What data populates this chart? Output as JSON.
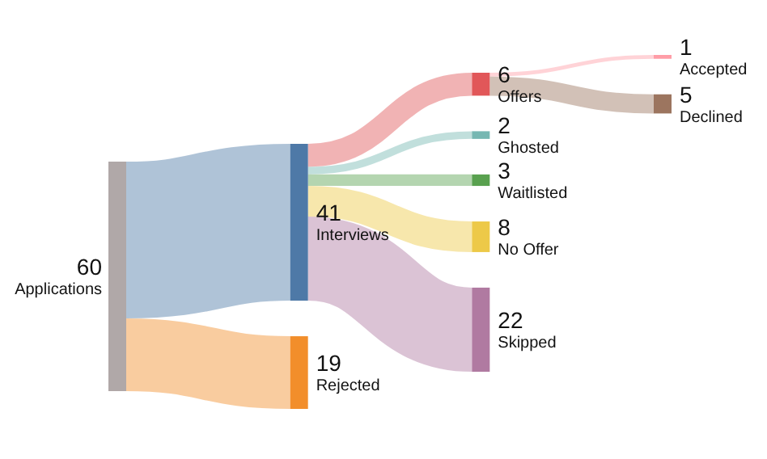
{
  "chart_data": {
    "type": "other",
    "categories": [
      "Applications",
      "Interviews",
      "Rejected",
      "Offers",
      "Ghosted",
      "Waitlisted",
      "No Offer",
      "Skipped",
      "Accepted",
      "Declined"
    ],
    "values": [
      60,
      41,
      19,
      6,
      2,
      3,
      8,
      22,
      1,
      5
    ],
    "colors": [
      "#b0a8a8",
      "#4e79a7",
      "#f28e2b",
      "#e15759",
      "#76b7b2",
      "#59a14f",
      "#edc948",
      "#b07aa1",
      "#ff9da7",
      "#9c755f"
    ],
    "data_labels": true
  }
}
